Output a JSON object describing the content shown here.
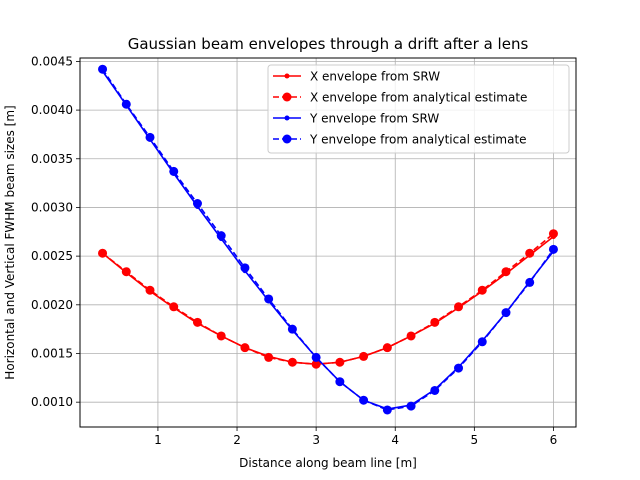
{
  "chart_data": {
    "type": "line",
    "title": "Gaussian beam envelopes through a drift after a lens",
    "xlabel": "Distance along beam line [m]",
    "ylabel": "Horizontal and Vertical FWHM beam sizes [m]",
    "xlim": [
      0.015,
      6.285
    ],
    "ylim": [
      0.000745,
      0.004535
    ],
    "xticks": [
      1,
      2,
      3,
      4,
      5,
      6
    ],
    "xtick_labels": [
      "1",
      "2",
      "3",
      "4",
      "5",
      "6"
    ],
    "yticks": [
      0.001,
      0.0015,
      0.002,
      0.0025,
      0.003,
      0.0035,
      0.004,
      0.0045
    ],
    "ytick_labels": [
      "0.0010",
      "0.0015",
      "0.0020",
      "0.0025",
      "0.0030",
      "0.0035",
      "0.0040",
      "0.0045"
    ],
    "grid": true,
    "legend_position": "top-right",
    "x": [
      0.3,
      0.6,
      0.9,
      1.2,
      1.5,
      1.8,
      2.1,
      2.4,
      2.7,
      3.0,
      3.3,
      3.6,
      3.9,
      4.2,
      4.5,
      4.8,
      5.1,
      5.4,
      5.7,
      6.0
    ],
    "series": [
      {
        "name": "X envelope from SRW",
        "color": "#ff0000",
        "style": "solid-small-markers",
        "values": [
          0.00253,
          0.00233,
          0.00214,
          0.00197,
          0.00181,
          0.00168,
          0.00156,
          0.00147,
          0.00141,
          0.00139,
          0.00141,
          0.00147,
          0.00156,
          0.00168,
          0.00181,
          0.00197,
          0.00214,
          0.00232,
          0.00251,
          0.0027
        ]
      },
      {
        "name": "X envelope from analytical estimate",
        "color": "#ff0000",
        "style": "dashed-large-markers",
        "values": [
          0.00253,
          0.00234,
          0.00215,
          0.00198,
          0.00182,
          0.00168,
          0.00156,
          0.00146,
          0.00141,
          0.00139,
          0.00141,
          0.00147,
          0.00156,
          0.00168,
          0.00182,
          0.00198,
          0.00215,
          0.00234,
          0.00253,
          0.00273
        ]
      },
      {
        "name": "Y envelope from SRW",
        "color": "#0000ff",
        "style": "solid-small-markers",
        "values": [
          0.0044,
          0.00405,
          0.0037,
          0.00335,
          0.00301,
          0.00268,
          0.00235,
          0.00204,
          0.00174,
          0.00146,
          0.00121,
          0.00102,
          0.00093,
          0.00097,
          0.00113,
          0.00136,
          0.00163,
          0.00192,
          0.00224,
          0.00255
        ]
      },
      {
        "name": "Y envelope from analytical estimate",
        "color": "#0000ff",
        "style": "dashed-large-markers",
        "values": [
          0.00442,
          0.00406,
          0.00372,
          0.00337,
          0.00304,
          0.00271,
          0.00238,
          0.00206,
          0.00175,
          0.00146,
          0.00121,
          0.00102,
          0.00092,
          0.00096,
          0.00112,
          0.00135,
          0.00162,
          0.00192,
          0.00223,
          0.00257
        ]
      }
    ]
  }
}
